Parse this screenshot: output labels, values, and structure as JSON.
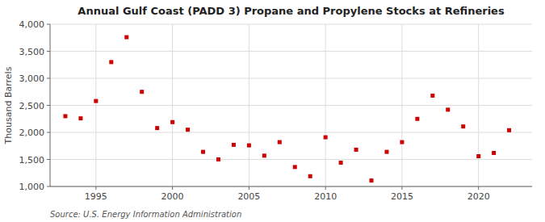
{
  "chart_data": {
    "type": "scatter",
    "title": "Annual Gulf Coast (PADD 3) Propane and Propylene Stocks at Refineries",
    "y_label": "Thousand Barrels",
    "source": "Source: U.S. Energy Information Administration",
    "x": [
      1993,
      1994,
      1995,
      1996,
      1997,
      1998,
      1999,
      2000,
      2001,
      2002,
      2003,
      2004,
      2005,
      2006,
      2007,
      2008,
      2009,
      2010,
      2011,
      2012,
      2013,
      2014,
      2015,
      2016,
      2017,
      2018,
      2019,
      2020,
      2021,
      2022
    ],
    "values": [
      2300,
      2260,
      2580,
      3300,
      3760,
      2750,
      2080,
      2190,
      2050,
      1640,
      1500,
      1770,
      1760,
      1570,
      1820,
      1360,
      1190,
      1910,
      1440,
      1680,
      1110,
      1640,
      1820,
      2250,
      2680,
      2420,
      2110,
      1560,
      1620,
      2040
    ],
    "color": "#cc0000",
    "marker": "square",
    "xlim": [
      1992.0,
      2023.5
    ],
    "xticks": [
      1995,
      2000,
      2005,
      2010,
      2015,
      2020
    ],
    "ylim": [
      1000,
      4000
    ],
    "yticks": [
      {
        "value": 1000,
        "label": "1,000"
      },
      {
        "value": 1500,
        "label": "1,500"
      },
      {
        "value": 2000,
        "label": "2,000"
      },
      {
        "value": 2500,
        "label": "2,500"
      },
      {
        "value": 3000,
        "label": "3,000"
      },
      {
        "value": 3500,
        "label": "3,500"
      },
      {
        "value": 4000,
        "label": "4,000"
      }
    ],
    "grid": true
  }
}
